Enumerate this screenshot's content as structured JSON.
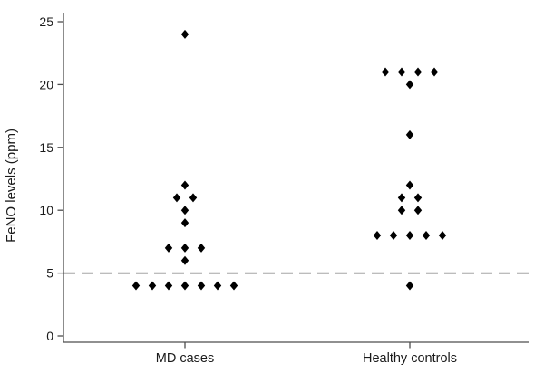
{
  "figure": {
    "background": "#ffffff",
    "marker_color": "#000000",
    "axis_color": "#4d4d4d",
    "text_color": "#1a1a1a",
    "ref_line_color": "#4d4d4d"
  },
  "chart_data": {
    "type": "scatter",
    "subtype": "dot-plot-grouped",
    "title": "",
    "xlabel": "",
    "ylabel": "FeNO levels (ppm)",
    "ylim": [
      0,
      25.7
    ],
    "yticks": [
      0,
      5,
      10,
      15,
      20,
      25
    ],
    "grid": false,
    "legend": false,
    "marker": "filled-diamond",
    "marker_color": "#000000",
    "reference_line": {
      "y": 5,
      "style": "dashed",
      "note": "horizontal dashed cutoff line at FeNO = 5 ppm spanning full plot width"
    },
    "categories": [
      "MD cases",
      "Healthy controls"
    ],
    "series": [
      {
        "name": "MD cases",
        "n": 17,
        "values": [
          24,
          12,
          11,
          11,
          10,
          9,
          7,
          7,
          7,
          6,
          4,
          4,
          4,
          4,
          4,
          4,
          4
        ]
      },
      {
        "name": "Healthy controls",
        "n": 17,
        "values": [
          21,
          21,
          21,
          21,
          20,
          16,
          12,
          11,
          11,
          10,
          10,
          8,
          8,
          8,
          8,
          8,
          4
        ]
      }
    ],
    "layout_hint": "identical values within a group are spread symmetrically side-by-side around the group's x center"
  }
}
